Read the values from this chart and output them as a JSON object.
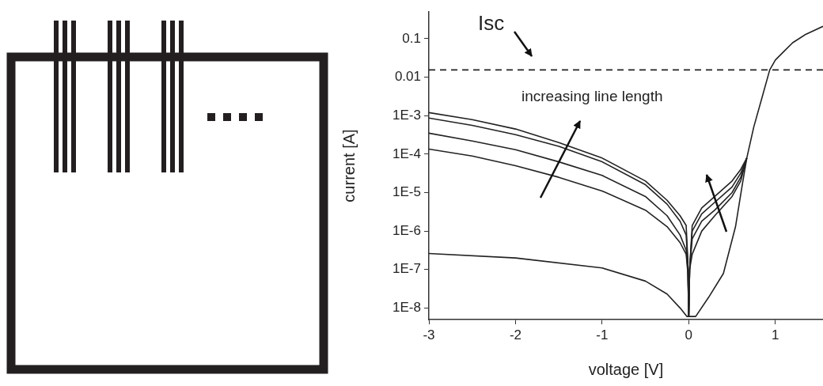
{
  "chart_data": {
    "type": "line",
    "xlabel": "voltage [V]",
    "ylabel": "current [A]",
    "log": "y",
    "line_style": "solid",
    "marker": "none",
    "xlim": [
      -3,
      1.55
    ],
    "xticks": [
      -3,
      -2,
      -1,
      0,
      1
    ],
    "ylim": [
      5e-09,
      0.5
    ],
    "yticks": [
      {
        "value": 1e-08,
        "label": "1E-8"
      },
      {
        "value": 1e-07,
        "label": "1E-7"
      },
      {
        "value": 1e-06,
        "label": "1E-6"
      },
      {
        "value": 1e-05,
        "label": "1E-5"
      },
      {
        "value": 0.0001,
        "label": "1E-4"
      },
      {
        "value": 0.001,
        "label": "1E-3"
      },
      0.01,
      0.1
    ],
    "ref_lines": [
      {
        "axis": "y",
        "value": 0.0155,
        "label": "Isc",
        "line_style": "dashed",
        "color": "#222222"
      }
    ],
    "annotations": [
      "increasing line length"
    ],
    "series": [
      {
        "color": "#222222",
        "x": [
          -3,
          -2.5,
          -2,
          -1.5,
          -1,
          -0.5,
          -0.25,
          -0.1,
          -0.03,
          -0.01,
          0,
          0.01,
          0.04,
          0.15,
          0.3,
          0.5,
          0.6,
          0.67
        ],
        "values": [
          0.0012,
          0.00079,
          0.00045,
          0.0002,
          7.9e-05,
          2e-05,
          6.3e-06,
          2.5e-06,
          1.4e-06,
          1.6e-07,
          6e-09,
          1e-07,
          1.4e-06,
          4e-06,
          7.9e-06,
          2e-05,
          4e-05,
          7.9e-05
        ]
      },
      {
        "color": "#222222",
        "x": [
          -3,
          -2.5,
          -2,
          -1.5,
          -1,
          -0.5,
          -0.25,
          -0.1,
          -0.03,
          -0.01,
          0,
          0.01,
          0.04,
          0.15,
          0.3,
          0.5,
          0.6,
          0.67
        ],
        "values": [
          0.00087,
          0.00056,
          0.00032,
          0.00016,
          6.3e-05,
          1.6e-05,
          5e-06,
          1.8e-06,
          7.9e-07,
          1.3e-07,
          6e-09,
          1e-07,
          1e-06,
          2.8e-06,
          5.6e-06,
          1.4e-05,
          3.2e-05,
          7.9e-05
        ]
      },
      {
        "color": "#222222",
        "x": [
          -3,
          -2.5,
          -2,
          -1.5,
          -1,
          -0.5,
          -0.25,
          -0.1,
          -0.03,
          -0.01,
          0,
          0.01,
          0.04,
          0.15,
          0.3,
          0.5,
          0.6,
          0.67
        ],
        "values": [
          0.00035,
          0.00022,
          0.00013,
          6.3e-05,
          2.8e-05,
          7.9e-06,
          2.5e-06,
          7.9e-07,
          3.2e-07,
          1e-07,
          6e-09,
          1e-07,
          6.3e-07,
          1.8e-06,
          3.5e-06,
          1e-05,
          2.5e-05,
          7.9e-05
        ]
      },
      {
        "color": "#222222",
        "x": [
          -3,
          -2.5,
          -2,
          -1.5,
          -1,
          -0.5,
          -0.25,
          -0.1,
          -0.03,
          -0.01,
          0,
          0.01,
          0.04,
          0.15,
          0.3,
          0.5,
          0.6,
          0.67
        ],
        "values": [
          0.000135,
          8.9e-05,
          5e-05,
          2.5e-05,
          1.1e-05,
          3.5e-06,
          1.3e-06,
          5e-07,
          2.5e-07,
          7.9e-08,
          6e-09,
          1e-07,
          2.5e-07,
          1e-06,
          2.5e-06,
          7.9e-06,
          2e-05,
          7.9e-05
        ]
      },
      {
        "color": "#222222",
        "x": [
          -3,
          -2,
          -1,
          -0.5,
          -0.25,
          -0.1,
          -0.02,
          0.08,
          0.23,
          0.4,
          0.54,
          0.62,
          0.67,
          0.75,
          0.85,
          0.935,
          1.0,
          1.1,
          1.2,
          1.35,
          1.55
        ],
        "values": [
          2.6e-07,
          2e-07,
          1.1e-07,
          5e-08,
          2.3e-08,
          1e-08,
          6e-09,
          6e-09,
          1.9e-08,
          7.9e-08,
          1.3e-06,
          1.7e-05,
          7.9e-05,
          0.0005,
          0.0032,
          0.0155,
          0.028,
          0.047,
          0.079,
          0.13,
          0.21
        ]
      }
    ]
  }
}
